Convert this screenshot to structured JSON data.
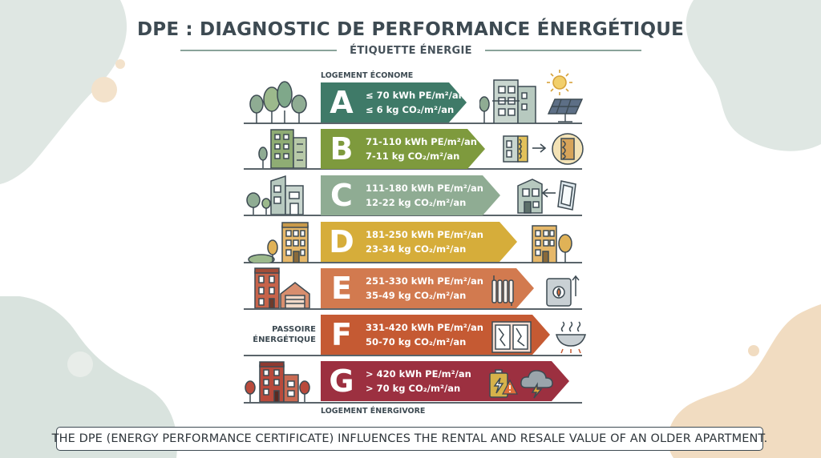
{
  "title": "DPE : DIAGNOSTIC DE PERFORMANCE ÉNERGÉTIQUE",
  "subtitle": "ÉTIQUETTE ÉNERGIE",
  "top_caption": "LOGEMENT ÉCONOME",
  "bottom_caption": "LOGEMENT ÉNERGIVORE",
  "side_label": {
    "line1": "PASSOIRE",
    "line2": "ÉNERGÉTIQUE"
  },
  "classes": [
    {
      "letter": "A",
      "energy": "≤ 70 kWh PE/m²/an",
      "co2": "≤ 6 kg CO₂/m²/an",
      "color": "#3f7a68"
    },
    {
      "letter": "B",
      "energy": "71-110 kWh PE/m²/an",
      "co2": "7-11 kg CO₂/m²/an",
      "color": "#7e9a3d"
    },
    {
      "letter": "C",
      "energy": "111-180 kWh PE/m²/an",
      "co2": "12-22 kg CO₂/m²/an",
      "color": "#8fac93"
    },
    {
      "letter": "D",
      "energy": "181-250 kWh PE/m²/an",
      "co2": "23-34 kg CO₂/m²/an",
      "color": "#d6ad3a"
    },
    {
      "letter": "E",
      "energy": "251-330 kWh PE/m²/an",
      "co2": "35-49 kg CO₂/m²/an",
      "color": "#d27a4f"
    },
    {
      "letter": "F",
      "energy": "331-420 kWh PE/m²/an",
      "co2": "50-70 kg CO₂/m²/an",
      "color": "#c55a33"
    },
    {
      "letter": "G",
      "energy": "> 420 kWh PE/m²/an",
      "co2": "> 70 kg CO₂/m²/an",
      "color": "#9c3040"
    }
  ],
  "footer": "THE DPE (ENERGY PERFORMANCE CERTIFICATE) INFLUENCES THE RENTAL AND RESALE VALUE OF AN OLDER APARTMENT.",
  "icons": {
    "A": {
      "left": "trees-icon",
      "right": [
        "eco-building-icon",
        "sun-icon",
        "solar-panel-icon"
      ]
    },
    "B": {
      "left": "office-building-icon",
      "right": [
        "insulated-wall-icon",
        "arrow-right-icon",
        "insulation-circle-icon"
      ]
    },
    "C": {
      "left": "house-with-trees-icon",
      "right": [
        "house-icon",
        "arrow-left-icon",
        "window-icon"
      ]
    },
    "D": {
      "left": "apartment-building-icon",
      "right": [
        "apartment-building-icon",
        "tree-icon"
      ]
    },
    "E": {
      "left": "house-and-garage-icon",
      "right": [
        "radiator-icon",
        "boiler-icon"
      ]
    },
    "F": {
      "right": [
        "broken-window-icon",
        "heat-loss-icon"
      ]
    },
    "G": {
      "left": "brick-building-icon",
      "right": [
        "battery-warning-icon",
        "warning-icon",
        "storm-cloud-icon"
      ]
    }
  }
}
